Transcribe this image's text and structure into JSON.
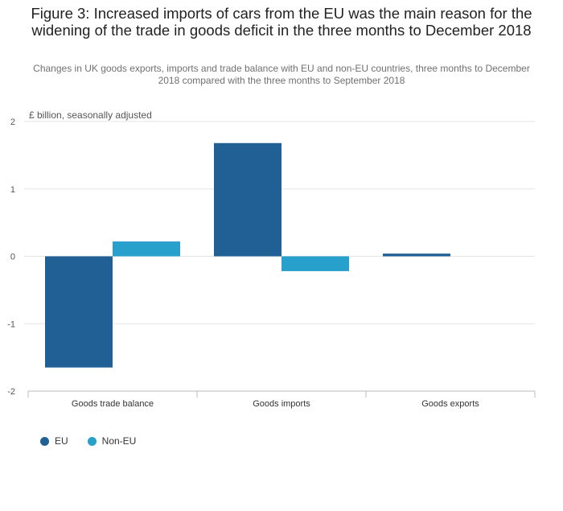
{
  "header": {
    "title": "Figure 3: Increased imports of cars from the EU was the main reason for the widening of the trade in goods deficit in the three months to December 2018",
    "subtitle": "Changes in UK goods exports, imports and trade balance with EU and non-EU countries, three months to December 2018 compared with the three months to September 2018"
  },
  "chart_data": {
    "type": "bar",
    "title": "Figure 3: Increased imports of cars from the EU was the main reason for the widening of the trade in goods deficit in the three months to December 2018",
    "subtitle": "Changes in UK goods exports, imports and trade balance with EU and non-EU countries, three months to December 2018 compared with the three months to September 2018",
    "ylabel": "£ billion, seasonally adjusted",
    "xlabel": "",
    "categories": [
      "Goods trade balance",
      "Goods imports",
      "Goods exports"
    ],
    "series": [
      {
        "name": "EU",
        "color": "#206095",
        "values": [
          -1.65,
          1.68,
          0.04
        ]
      },
      {
        "name": "Non-EU",
        "color": "#27a0cc",
        "values": [
          0.22,
          -0.22,
          0.0
        ]
      }
    ],
    "ylim": [
      -2,
      2
    ],
    "yticks": [
      2,
      1,
      0,
      -1,
      -2
    ],
    "grid": true,
    "legend_position": "bottom-left"
  }
}
